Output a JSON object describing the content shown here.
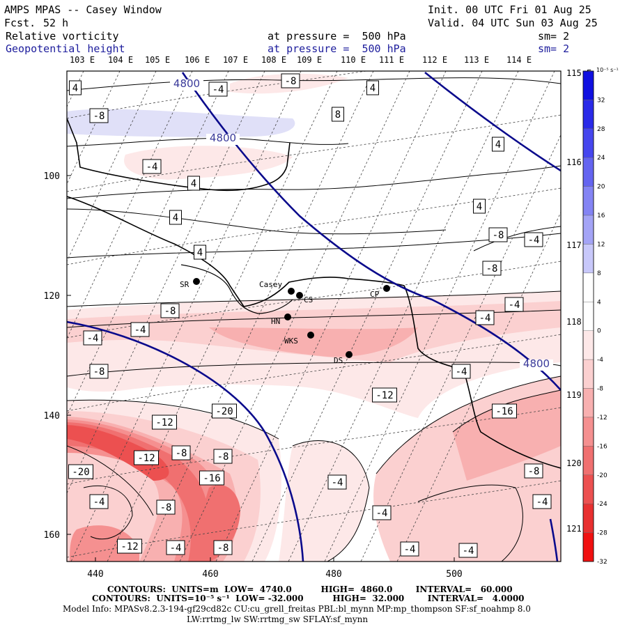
{
  "header": {
    "title": "AMPS MPAS -- Casey Window",
    "fcst_label": "Fcst.",
    "fcst_value": "52 h",
    "init": "Init. 00 UTC Fri 01 Aug 25",
    "valid": "Valid. 04 UTC Sun 03 Aug 25",
    "field1_name": "Relative vorticity",
    "field1_level": "at pressure =  500 hPa",
    "field1_sm": "sm= 2",
    "field2_name": "Geopotential height",
    "field2_level": "at pressure =  500 hPa",
    "field2_sm": "sm= 2"
  },
  "map": {
    "top_lon_labels": [
      "103 E",
      "104 E",
      "105 E",
      "106 E",
      "107 E",
      "108 E",
      "109 E",
      "110 E",
      "111 E",
      "112 E",
      "113 E",
      "114 E"
    ],
    "right_lon_labels": [
      "115 E",
      "116 E",
      "117 E",
      "118 E",
      "119 E",
      "120 E",
      "121 E"
    ],
    "x_axis_ticks": [
      "440",
      "460",
      "480",
      "500"
    ],
    "y_axis_ticks": [
      "100",
      "120",
      "140",
      "160"
    ],
    "stations": [
      {
        "code": "SR"
      },
      {
        "code": "Casey"
      },
      {
        "code": "CS"
      },
      {
        "code": "CP"
      },
      {
        "code": "HN"
      },
      {
        "code": "WKS"
      },
      {
        "code": "DS"
      }
    ],
    "height_labels": [
      "4800",
      "4800",
      "4800"
    ],
    "vorticity_labels": [
      "4",
      "-4",
      "-8",
      "4",
      "8",
      "-8",
      "-4",
      "4",
      "4",
      "4",
      "4",
      "4",
      "-8",
      "-4",
      "-8",
      "-4",
      "-8",
      "-4",
      "-4",
      "-4",
      "-8",
      "-4",
      "-12",
      "-20",
      "-16",
      "-12",
      "-8",
      "-8",
      "-12",
      "-16",
      "-20",
      "-4",
      "-8",
      "-4",
      "-8",
      "-4",
      "-4",
      "-12",
      "-4",
      "-8",
      "-4",
      "-4"
    ],
    "colors": {
      "height_contour": "#0a0a8c",
      "coast": "#000000",
      "contour": "#000000",
      "grid": "#444444"
    }
  },
  "colorbar": {
    "unit": "10⁻⁵ s⁻¹",
    "labels": [
      "32",
      "28",
      "24",
      "20",
      "16",
      "12",
      "8",
      "4",
      "0",
      "-4",
      "-8",
      "-12",
      "-16",
      "-20",
      "-24",
      "-28",
      "-32"
    ],
    "colors": [
      "#1010e0",
      "#2a2ae8",
      "#4646ee",
      "#6464f0",
      "#8484f4",
      "#a4a4f6",
      "#c8c8fa",
      "#ffffff",
      "#ffffff",
      "#fde8e8",
      "#fbd0d0",
      "#f8b0b0",
      "#f59090",
      "#f07070",
      "#ec5050",
      "#e83030",
      "#f01010"
    ]
  },
  "footer": {
    "line1": "CONTOURS:  UNITS=m  LOW=  4740.0          HIGH=  4860.0        INTERVAL=   60.000",
    "line2": "CONTOURS:  UNITS=10⁻⁵ s⁻¹  LOW= -32.000          HIGH=  32.000        INTERVAL=   4.0000",
    "line3": "Model Info: MPASv8.2.3-194-gf29cd82c CU:cu_grell_freitas PBL:bl_mynn MP:mp_thompson SF:sf_noahmp 8.0",
    "line4": "LW:rrtmg_lw SW:rrtmg_sw SFLAY:sf_mynn"
  }
}
